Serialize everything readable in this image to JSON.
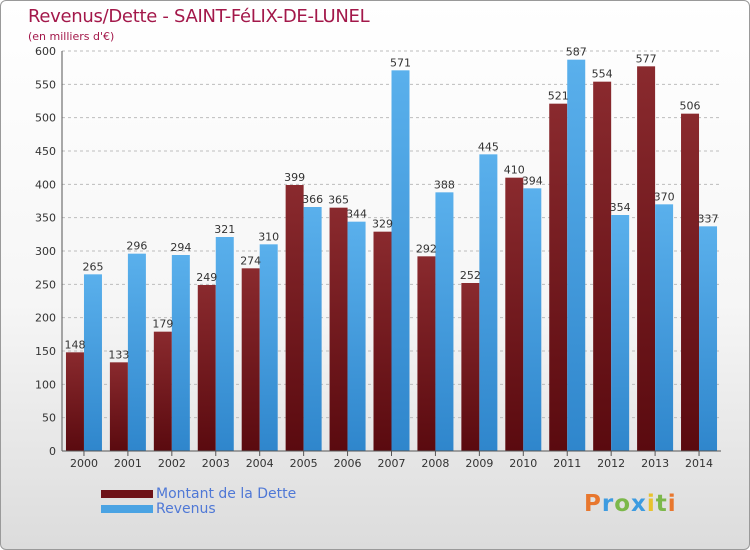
{
  "chart_data": {
    "type": "bar",
    "title": "Revenus/Dette - SAINT-FéLIX-DE-LUNEL",
    "subtitle": "(en milliers d'€)",
    "categories": [
      "2000",
      "2001",
      "2002",
      "2003",
      "2004",
      "2005",
      "2006",
      "2007",
      "2008",
      "2009",
      "2010",
      "2011",
      "2012",
      "2013",
      "2014"
    ],
    "series": [
      {
        "name": "Montant de la Dette",
        "color": "#7a1e22",
        "values": [
          148,
          133,
          179,
          249,
          274,
          399,
          365,
          329,
          292,
          252,
          410,
          521,
          554,
          577,
          506
        ]
      },
      {
        "name": "Revenus",
        "color": "#4aa3e3",
        "values": [
          265,
          296,
          294,
          321,
          310,
          366,
          344,
          571,
          388,
          445,
          394,
          587,
          354,
          370,
          337
        ]
      }
    ],
    "ylim": [
      0,
      600
    ],
    "yticks": [
      0,
      50,
      100,
      150,
      200,
      250,
      300,
      350,
      400,
      450,
      500,
      550,
      600
    ],
    "grid": true,
    "legend_position": "bottom-left"
  },
  "legend": {
    "items": [
      {
        "label": "Montant de la Dette",
        "color": "#6e1218"
      },
      {
        "label": "Revenus",
        "color": "#4aa3e3"
      }
    ]
  },
  "logo": {
    "letters": [
      "P",
      "r",
      "o",
      "x",
      "i",
      "t",
      "i"
    ],
    "colors": [
      "#e8772e",
      "#3d9be0",
      "#7cb84a",
      "#3d9be0",
      "#e8c22e",
      "#7cb84a",
      "#e8772e"
    ]
  }
}
